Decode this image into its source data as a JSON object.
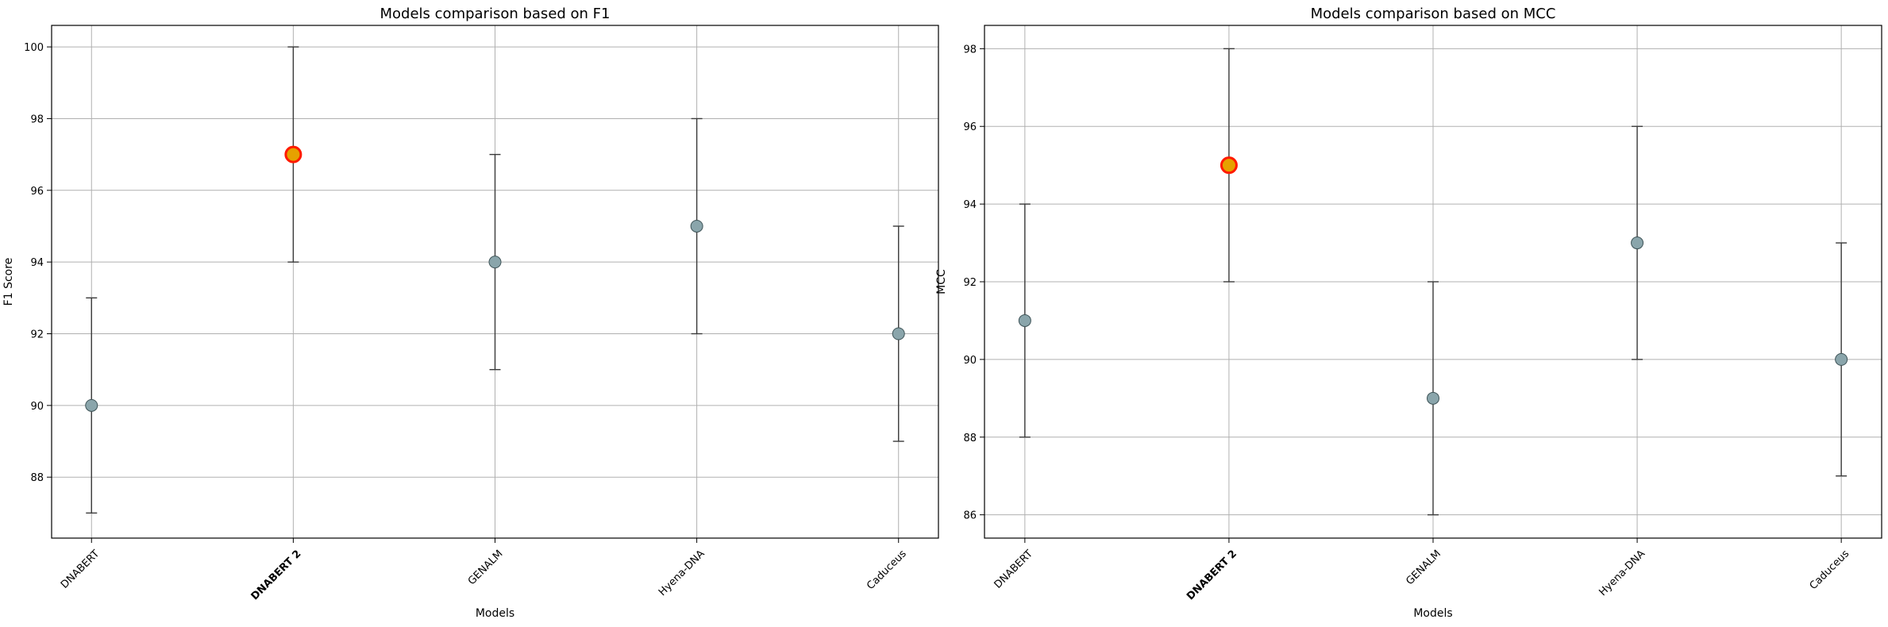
{
  "chart_data": [
    {
      "type": "scatter",
      "title": "Models comparison based on F1",
      "xlabel": "Models",
      "ylabel": "F1 Score",
      "categories": [
        "DNABERT",
        "DNABERT 2",
        "GENALM",
        "Hyena-DNA",
        "Caduceus"
      ],
      "values": [
        90,
        97,
        94,
        95,
        92
      ],
      "errors": [
        3,
        3,
        3,
        3,
        3
      ],
      "highlight_index": 1,
      "ylim": [
        86.3,
        100.6
      ],
      "yticks": [
        88,
        90,
        92,
        94,
        96,
        98,
        100
      ],
      "grid": true
    },
    {
      "type": "scatter",
      "title": "Models comparison based on MCC",
      "xlabel": "Models",
      "ylabel": "MCC",
      "categories": [
        "DNABERT",
        "DNABERT 2",
        "GENALM",
        "Hyena-DNA",
        "Caduceus"
      ],
      "values": [
        91,
        95,
        89,
        93,
        90
      ],
      "errors": [
        3,
        3,
        3,
        3,
        3
      ],
      "highlight_index": 1,
      "ylim": [
        85.4,
        98.6
      ],
      "yticks": [
        86,
        88,
        90,
        92,
        94,
        96,
        98
      ],
      "grid": true
    }
  ],
  "colors": {
    "point_fill": "#8aa5ab",
    "point_edge": "#3e5357",
    "highlight_fill": "#e6a100",
    "highlight_edge": "#ff1a00",
    "error_bar": "#3a3a3a"
  }
}
